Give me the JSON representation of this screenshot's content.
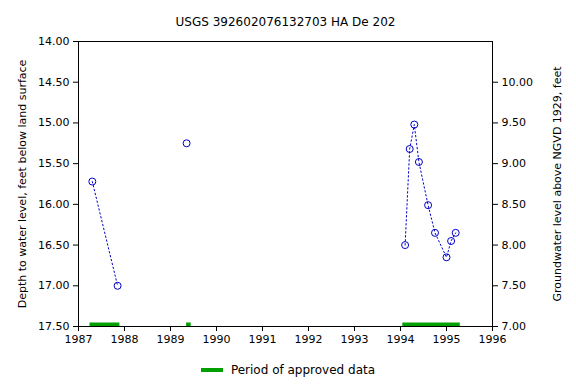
{
  "chart_data": {
    "type": "line",
    "title": "USGS 392602076132703 HA De 202",
    "y_label": "Depth to water level, feet below land surface",
    "y2_label": "Groundwater level above NGVD 1929, feet",
    "x": [
      1987.3,
      1987.85,
      null,
      1989.35,
      null,
      1994.1,
      1994.2,
      1994.3,
      1994.4,
      1994.6,
      1994.75,
      1995.0,
      1995.1,
      1995.2
    ],
    "values": [
      15.72,
      17.0,
      null,
      15.25,
      null,
      16.5,
      15.32,
      15.02,
      15.48,
      16.01,
      16.35,
      16.65,
      16.45,
      16.35
    ],
    "color": "#0000cc",
    "marker": "circle",
    "line_style": "dotted",
    "xlim": [
      1987,
      1996
    ],
    "xticks": [
      1987,
      1988,
      1989,
      1990,
      1991,
      1992,
      1993,
      1994,
      1995,
      1996
    ],
    "ylim": [
      17.5,
      14.0
    ],
    "yticks": [
      {
        "value": 14.0,
        "label": "14.00"
      },
      {
        "value": 14.5,
        "label": "14.50"
      },
      {
        "value": 15.0,
        "label": "15.00"
      },
      {
        "value": 15.5,
        "label": "15.50"
      },
      {
        "value": 16.0,
        "label": "16.00"
      },
      {
        "value": 16.5,
        "label": "16.50"
      },
      {
        "value": 17.0,
        "label": "17.00"
      },
      {
        "value": 17.5,
        "label": "17.50"
      }
    ],
    "y2lim": [
      7.0,
      10.5
    ],
    "y2ticks": [
      {
        "value": 7.0,
        "label": "7.00"
      },
      {
        "value": 7.5,
        "label": "7.50"
      },
      {
        "value": 8.0,
        "label": "8.00"
      },
      {
        "value": 8.5,
        "label": "8.50"
      },
      {
        "value": 9.0,
        "label": "9.00"
      },
      {
        "value": 9.5,
        "label": "9.50"
      },
      {
        "value": 10.0,
        "label": "10.00"
      }
    ],
    "approved_periods": {
      "name": "Period of approved data",
      "color": "#00a000",
      "ranges": [
        [
          1987.25,
          1987.9
        ],
        [
          1989.35,
          1989.45
        ],
        [
          1994.05,
          1995.3
        ]
      ]
    }
  }
}
